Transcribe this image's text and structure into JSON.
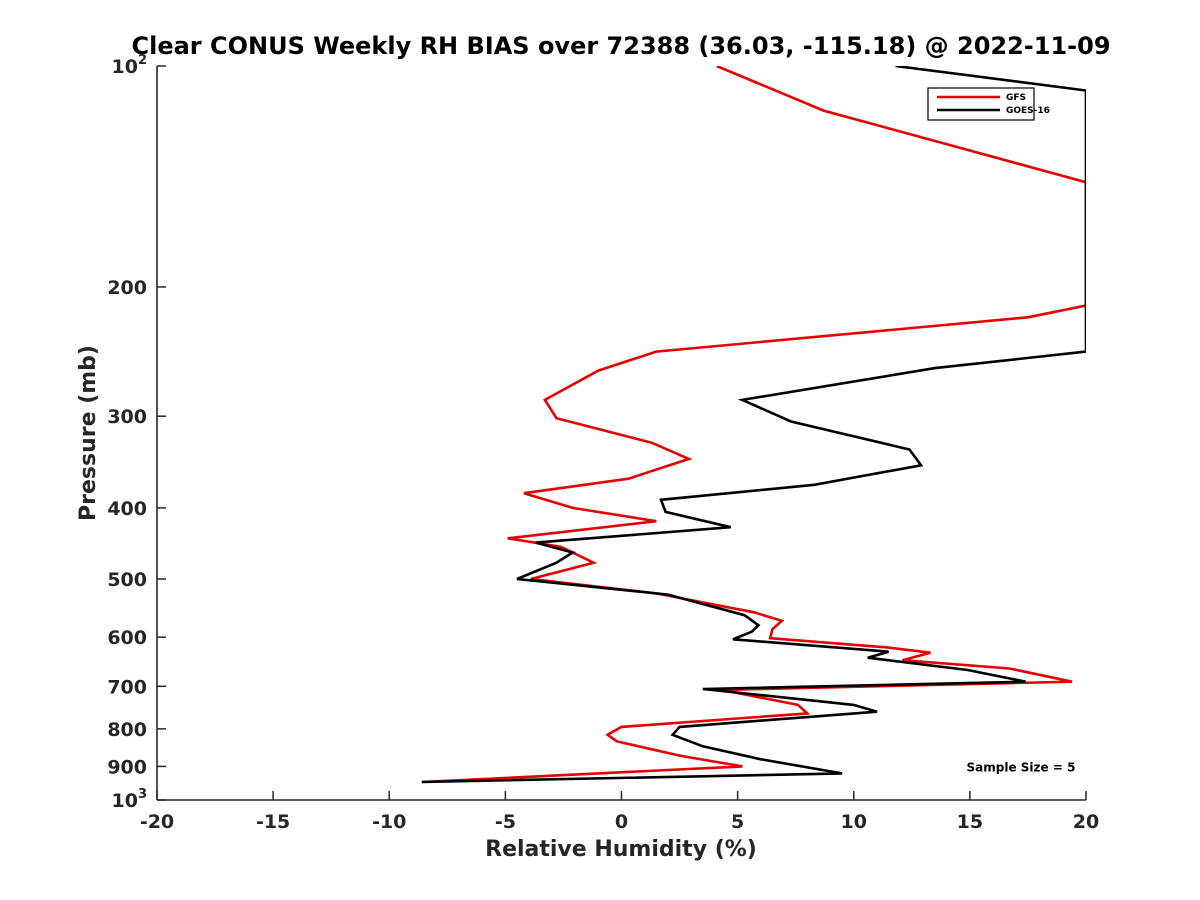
{
  "chart_data": {
    "type": "line",
    "title": "Clear CONUS Weekly RH BIAS over 72388 (36.03, -115.18) @ 2022-11-09",
    "xlabel": "Relative Humidity (%)",
    "ylabel": "Pressure (mb)",
    "xlim": [
      -20,
      20
    ],
    "ylim": [
      100,
      1000
    ],
    "y_scale": "log",
    "y_reversed": true,
    "grid": false,
    "legend_position": "top-right",
    "x_ticks": [
      {
        "value": -20,
        "label": "-20"
      },
      {
        "value": -15,
        "label": "-15"
      },
      {
        "value": -10,
        "label": "-10"
      },
      {
        "value": -5,
        "label": "-5"
      },
      {
        "value": 0,
        "label": "0"
      },
      {
        "value": 5,
        "label": "5"
      },
      {
        "value": 10,
        "label": "10"
      },
      {
        "value": 15,
        "label": "15"
      },
      {
        "value": 20,
        "label": "20"
      }
    ],
    "y_ticks": [
      {
        "value": 100,
        "label": "10",
        "sup": "2"
      },
      {
        "value": 200,
        "label": "200"
      },
      {
        "value": 300,
        "label": "300"
      },
      {
        "value": 400,
        "label": "400"
      },
      {
        "value": 500,
        "label": "500"
      },
      {
        "value": 600,
        "label": "600"
      },
      {
        "value": 700,
        "label": "700"
      },
      {
        "value": 800,
        "label": "800"
      },
      {
        "value": 900,
        "label": "900"
      },
      {
        "value": 1000,
        "label": "10",
        "sup": "3"
      }
    ],
    "series": [
      {
        "name": "GFS",
        "color": "#e60000",
        "points": [
          [
            4.1,
            100
          ],
          [
            8.7,
            115
          ],
          [
            20,
            144
          ],
          [
            20,
            212
          ],
          [
            17.5,
            220
          ],
          [
            1.5,
            245
          ],
          [
            -1.0,
            260
          ],
          [
            -3.3,
            285
          ],
          [
            -2.8,
            302
          ],
          [
            1.3,
            326
          ],
          [
            2.9,
            343
          ],
          [
            0.3,
            365
          ],
          [
            -4.2,
            382
          ],
          [
            -2.1,
            400
          ],
          [
            1.5,
            417
          ],
          [
            -4.9,
            440
          ],
          [
            -2.6,
            452
          ],
          [
            -1.2,
            475
          ],
          [
            -3.9,
            500
          ],
          [
            1.5,
            523
          ],
          [
            5.7,
            555
          ],
          [
            6.9,
            570
          ],
          [
            6.5,
            585
          ],
          [
            6.4,
            602
          ],
          [
            11.5,
            620
          ],
          [
            13.3,
            630
          ],
          [
            12.1,
            645
          ],
          [
            16.7,
            662
          ],
          [
            19.4,
            690
          ],
          [
            4.3,
            708
          ],
          [
            7.6,
            742
          ],
          [
            8.0,
            762
          ],
          [
            0.0,
            795
          ],
          [
            -0.6,
            815
          ],
          [
            -0.2,
            832
          ],
          [
            2.5,
            870
          ],
          [
            5.2,
            900
          ],
          [
            -8.6,
            945
          ]
        ]
      },
      {
        "name": "GOES-16",
        "color": "#000000",
        "points": [
          [
            11.8,
            100
          ],
          [
            20,
            108
          ],
          [
            20,
            245
          ],
          [
            13.5,
            258
          ],
          [
            5.2,
            285
          ],
          [
            7.3,
            305
          ],
          [
            12.4,
            333
          ],
          [
            12.9,
            350
          ],
          [
            8.3,
            372
          ],
          [
            1.7,
            390
          ],
          [
            1.9,
            405
          ],
          [
            4.7,
            425
          ],
          [
            -3.7,
            446
          ],
          [
            -2.1,
            460
          ],
          [
            -2.8,
            475
          ],
          [
            -4.5,
            500
          ],
          [
            2.0,
            525
          ],
          [
            5.3,
            560
          ],
          [
            5.9,
            578
          ],
          [
            5.6,
            590
          ],
          [
            4.8,
            604
          ],
          [
            11.5,
            628
          ],
          [
            10.6,
            640
          ],
          [
            14.9,
            665
          ],
          [
            17.4,
            690
          ],
          [
            3.5,
            706
          ],
          [
            10.0,
            742
          ],
          [
            11.0,
            758
          ],
          [
            2.5,
            795
          ],
          [
            2.2,
            815
          ],
          [
            3.5,
            845
          ],
          [
            6.0,
            880
          ],
          [
            9.5,
            920
          ],
          [
            -8.6,
            945
          ]
        ]
      }
    ],
    "annotations": [
      {
        "text": "Sample Size = 5",
        "x": 17.2,
        "y": 900
      }
    ]
  }
}
